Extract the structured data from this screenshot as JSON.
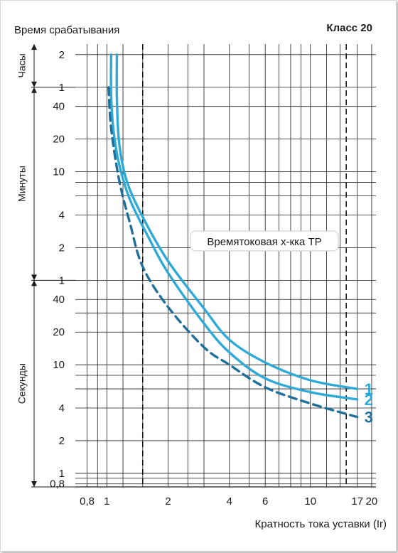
{
  "chart_data": {
    "type": "line",
    "title": "Класс 20",
    "ylabel": "Время срабатывания",
    "xlabel": "Кратность тока уставки (Ir)",
    "annotation": "Времятоковая х-кка ТР",
    "x_scale": "log",
    "y_scale": "log",
    "xlim": [
      0.7,
      21
    ],
    "ylim_seconds": [
      0.75,
      9000
    ],
    "x_ticks": [
      {
        "value": 0.8,
        "label": "0,8"
      },
      {
        "value": 1,
        "label": "1"
      },
      {
        "value": 2,
        "label": "2"
      },
      {
        "value": 4,
        "label": "4"
      },
      {
        "value": 6,
        "label": "6"
      },
      {
        "value": 10,
        "label": "10"
      },
      {
        "value": 17,
        "label": "17"
      },
      {
        "value": 20,
        "label": "20"
      }
    ],
    "y_ticks": [
      {
        "seconds": 7200,
        "label": "2"
      },
      {
        "seconds": 3600,
        "label": "1"
      },
      {
        "seconds": 2400,
        "label": "40"
      },
      {
        "seconds": 1200,
        "label": "20"
      },
      {
        "seconds": 600,
        "label": "10"
      },
      {
        "seconds": 240,
        "label": "4"
      },
      {
        "seconds": 120,
        "label": "2"
      },
      {
        "seconds": 60,
        "label": "1"
      },
      {
        "seconds": 40,
        "label": "40"
      },
      {
        "seconds": 20,
        "label": "20"
      },
      {
        "seconds": 10,
        "label": "10"
      },
      {
        "seconds": 4,
        "label": "4"
      },
      {
        "seconds": 2,
        "label": "2"
      },
      {
        "seconds": 1,
        "label": "1"
      },
      {
        "seconds": 0.8,
        "label": "0,8"
      }
    ],
    "y_bands": [
      {
        "label": "Часы",
        "from": 9000,
        "to": 3600
      },
      {
        "label": "Минуты",
        "from": 3600,
        "to": 60
      },
      {
        "label": "Секунды",
        "from": 60,
        "to": 0.75
      }
    ],
    "x_grid": [
      0.8,
      0.9,
      1,
      1.2,
      1.5,
      2,
      2.5,
      3,
      4,
      5,
      6,
      7,
      8,
      9,
      10,
      12,
      14,
      17,
      20
    ],
    "y_grid_seconds": [
      7200,
      3600,
      2400,
      1200,
      600,
      480,
      360,
      240,
      120,
      60,
      40,
      30,
      20,
      10,
      8,
      6,
      4,
      2,
      1,
      0.9,
      0.8
    ],
    "dashed_verticals": [
      1.5,
      15
    ],
    "series": [
      {
        "name": "1",
        "style": "solid",
        "x": [
          1.12,
          1.12,
          1.15,
          1.25,
          1.5,
          2,
          3,
          4,
          6,
          10,
          17
        ],
        "y": [
          7200,
          2800,
          1100,
          500,
          230,
          90,
          33,
          17,
          10.5,
          7.2,
          6.0
        ]
      },
      {
        "name": "2",
        "style": "solid",
        "x": [
          1.05,
          1.05,
          1.08,
          1.15,
          1.3,
          1.6,
          2,
          3,
          4,
          6,
          10,
          17
        ],
        "y": [
          7200,
          3000,
          1400,
          700,
          330,
          150,
          70,
          24,
          13,
          7.5,
          5.6,
          4.8
        ]
      },
      {
        "name": "3",
        "style": "dashed",
        "x": [
          1.02,
          1.05,
          1.15,
          1.3,
          1.5,
          2,
          3,
          4,
          6,
          10,
          17
        ],
        "y": [
          3600,
          1500,
          500,
          200,
          80,
          34,
          14.5,
          10,
          6.2,
          4.4,
          3.3
        ]
      }
    ],
    "colors": {
      "curve": "#2fa9d6",
      "curve_dark": "#1f6f9a",
      "grid": "#1a1a1a"
    }
  }
}
